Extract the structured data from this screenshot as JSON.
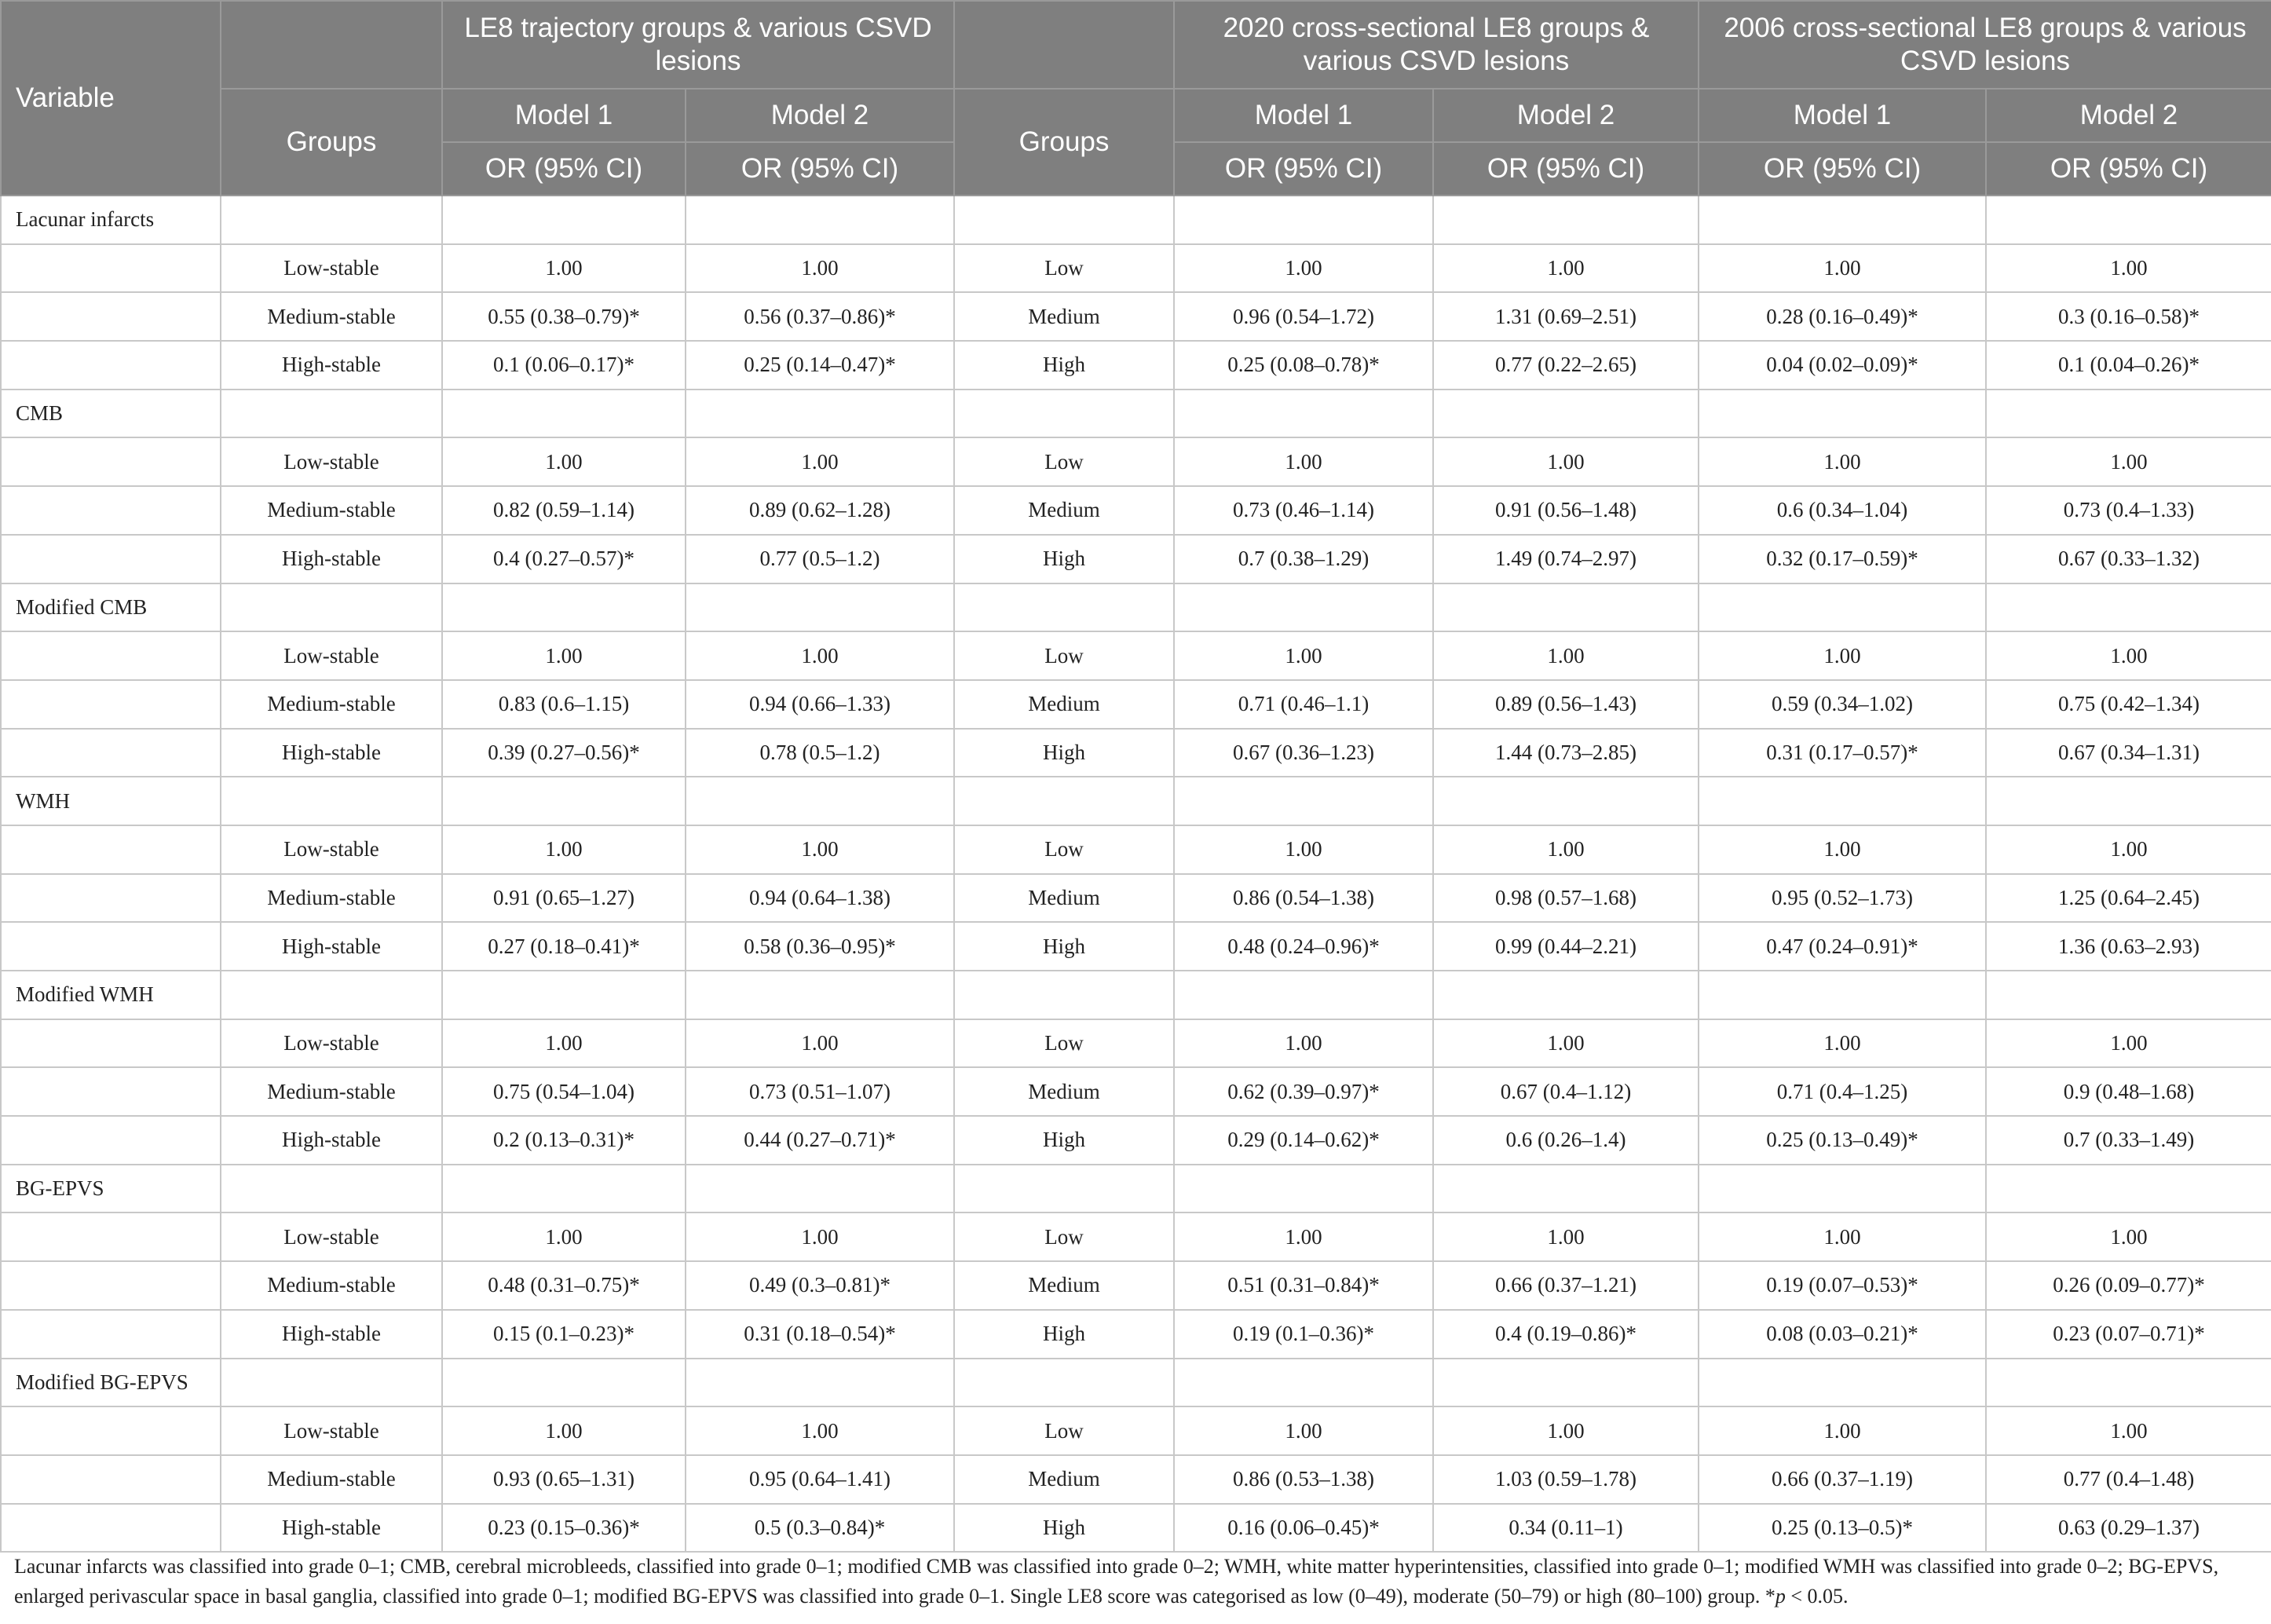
{
  "header": {
    "variable": "Variable",
    "groups": "Groups",
    "sections": [
      "LE8 trajectory groups & various CSVD lesions",
      "2020 cross-sectional LE8 groups & various CSVD lesions",
      "2006 cross-sectional LE8 groups & various CSVD lesions"
    ],
    "model1": "Model 1",
    "model2": "Model 2",
    "or": "OR (95% CI)"
  },
  "rows": [
    {
      "label": "Lacunar infarcts"
    },
    {
      "cells": [
        "Low-stable",
        "1.00",
        "1.00",
        "Low",
        "1.00",
        "1.00",
        "1.00",
        "1.00"
      ]
    },
    {
      "cells": [
        "Medium-stable",
        "0.55 (0.38–0.79)*",
        "0.56 (0.37–0.86)*",
        "Medium",
        "0.96 (0.54–1.72)",
        "1.31 (0.69–2.51)",
        "0.28 (0.16–0.49)*",
        "0.3 (0.16–0.58)*"
      ]
    },
    {
      "cells": [
        "High-stable",
        "0.1 (0.06–0.17)*",
        "0.25 (0.14–0.47)*",
        "High",
        "0.25 (0.08–0.78)*",
        "0.77 (0.22–2.65)",
        "0.04 (0.02–0.09)*",
        "0.1 (0.04–0.26)*"
      ]
    },
    {
      "label": "CMB"
    },
    {
      "cells": [
        "Low-stable",
        "1.00",
        "1.00",
        "Low",
        "1.00",
        "1.00",
        "1.00",
        "1.00"
      ]
    },
    {
      "cells": [
        "Medium-stable",
        "0.82 (0.59–1.14)",
        "0.89 (0.62–1.28)",
        "Medium",
        "0.73 (0.46–1.14)",
        "0.91 (0.56–1.48)",
        "0.6 (0.34–1.04)",
        "0.73 (0.4–1.33)"
      ]
    },
    {
      "cells": [
        "High-stable",
        "0.4 (0.27–0.57)*",
        "0.77 (0.5–1.2)",
        "High",
        "0.7 (0.38–1.29)",
        "1.49 (0.74–2.97)",
        "0.32 (0.17–0.59)*",
        "0.67 (0.33–1.32)"
      ]
    },
    {
      "label": "Modified CMB"
    },
    {
      "cells": [
        "Low-stable",
        "1.00",
        "1.00",
        "Low",
        "1.00",
        "1.00",
        "1.00",
        "1.00"
      ]
    },
    {
      "cells": [
        "Medium-stable",
        "0.83 (0.6–1.15)",
        "0.94 (0.66–1.33)",
        "Medium",
        "0.71 (0.46–1.1)",
        "0.89 (0.56–1.43)",
        "0.59 (0.34–1.02)",
        "0.75 (0.42–1.34)"
      ]
    },
    {
      "cells": [
        "High-stable",
        "0.39 (0.27–0.56)*",
        "0.78 (0.5–1.2)",
        "High",
        "0.67 (0.36–1.23)",
        "1.44 (0.73–2.85)",
        "0.31 (0.17–0.57)*",
        "0.67 (0.34–1.31)"
      ]
    },
    {
      "label": "WMH"
    },
    {
      "cells": [
        "Low-stable",
        "1.00",
        "1.00",
        "Low",
        "1.00",
        "1.00",
        "1.00",
        "1.00"
      ]
    },
    {
      "cells": [
        "Medium-stable",
        "0.91 (0.65–1.27)",
        "0.94 (0.64–1.38)",
        "Medium",
        "0.86 (0.54–1.38)",
        "0.98 (0.57–1.68)",
        "0.95 (0.52–1.73)",
        "1.25 (0.64–2.45)"
      ]
    },
    {
      "cells": [
        "High-stable",
        "0.27 (0.18–0.41)*",
        "0.58 (0.36–0.95)*",
        "High",
        "0.48 (0.24–0.96)*",
        "0.99 (0.44–2.21)",
        "0.47 (0.24–0.91)*",
        "1.36 (0.63–2.93)"
      ]
    },
    {
      "label": "Modified WMH"
    },
    {
      "cells": [
        "Low-stable",
        "1.00",
        "1.00",
        "Low",
        "1.00",
        "1.00",
        "1.00",
        "1.00"
      ]
    },
    {
      "cells": [
        "Medium-stable",
        "0.75 (0.54–1.04)",
        "0.73 (0.51–1.07)",
        "Medium",
        "0.62 (0.39–0.97)*",
        "0.67 (0.4–1.12)",
        "0.71 (0.4–1.25)",
        "0.9 (0.48–1.68)"
      ]
    },
    {
      "cells": [
        "High-stable",
        "0.2 (0.13–0.31)*",
        "0.44 (0.27–0.71)*",
        "High",
        "0.29 (0.14–0.62)*",
        "0.6 (0.26–1.4)",
        "0.25 (0.13–0.49)*",
        "0.7 (0.33–1.49)"
      ]
    },
    {
      "label": "BG-EPVS"
    },
    {
      "cells": [
        "Low-stable",
        "1.00",
        "1.00",
        "Low",
        "1.00",
        "1.00",
        "1.00",
        "1.00"
      ]
    },
    {
      "cells": [
        "Medium-stable",
        "0.48 (0.31–0.75)*",
        "0.49 (0.3–0.81)*",
        "Medium",
        "0.51 (0.31–0.84)*",
        "0.66 (0.37–1.21)",
        "0.19 (0.07–0.53)*",
        "0.26 (0.09–0.77)*"
      ]
    },
    {
      "cells": [
        "High-stable",
        "0.15 (0.1–0.23)*",
        "0.31 (0.18–0.54)*",
        "High",
        "0.19 (0.1–0.36)*",
        "0.4 (0.19–0.86)*",
        "0.08 (0.03–0.21)*",
        "0.23 (0.07–0.71)*"
      ]
    },
    {
      "label": "Modified BG-EPVS"
    },
    {
      "cells": [
        "Low-stable",
        "1.00",
        "1.00",
        "Low",
        "1.00",
        "1.00",
        "1.00",
        "1.00"
      ]
    },
    {
      "cells": [
        "Medium-stable",
        "0.93 (0.65–1.31)",
        "0.95 (0.64–1.41)",
        "Medium",
        "0.86 (0.53–1.38)",
        "1.03 (0.59–1.78)",
        "0.66 (0.37–1.19)",
        "0.77 (0.4–1.48)"
      ]
    },
    {
      "cells": [
        "High-stable",
        "0.23 (0.15–0.36)*",
        "0.5 (0.3–0.84)*",
        "High",
        "0.16 (0.06–0.45)*",
        "0.34 (0.11–1)",
        "0.25 (0.13–0.5)*",
        "0.63 (0.29–1.37)"
      ]
    }
  ],
  "footnote": {
    "text": "Lacunar infarcts was classified into grade 0–1; CMB, cerebral microbleeds, classified into grade 0–1; modified CMB was classified into grade 0–2; WMH, white matter hyperintensities, classified into grade 0–1; modified WMH was classified into grade 0–2; BG-EPVS, enlarged perivascular space in basal ganglia, classified into grade 0–1; modified BG-EPVS was classified into grade 0–1. Single LE8 score was categorised as low (0–49), moderate (50–79) or high (80–100) group. *",
    "p": "p",
    "tail": " < 0.05."
  }
}
